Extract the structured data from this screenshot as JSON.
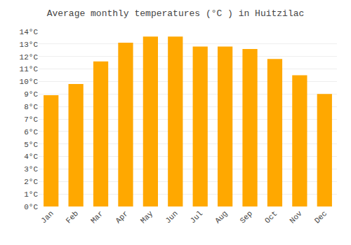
{
  "chart_data": {
    "type": "bar",
    "title": "Average monthly temperatures (°C ) in Huitzilac",
    "categories": [
      "Jan",
      "Feb",
      "Mar",
      "Apr",
      "May",
      "Jun",
      "Jul",
      "Aug",
      "Sep",
      "Oct",
      "Nov",
      "Dec"
    ],
    "values": [
      8.9,
      9.8,
      11.6,
      13.1,
      13.6,
      13.6,
      12.8,
      12.8,
      12.6,
      11.8,
      10.5,
      9.0
    ],
    "color": "#FFA800",
    "ylim": [
      0,
      14
    ],
    "yticks": [
      {
        "value": 0,
        "label": "0°C"
      },
      {
        "value": 1,
        "label": "1°C"
      },
      {
        "value": 2,
        "label": "2°C"
      },
      {
        "value": 3,
        "label": "3°C"
      },
      {
        "value": 4,
        "label": "4°C"
      },
      {
        "value": 5,
        "label": "5°C"
      },
      {
        "value": 6,
        "label": "6°C"
      },
      {
        "value": 7,
        "label": "7°C"
      },
      {
        "value": 8,
        "label": "8°C"
      },
      {
        "value": 9,
        "label": "9°C"
      },
      {
        "value": 10,
        "label": "10°C"
      },
      {
        "value": 11,
        "label": "11°C"
      },
      {
        "value": 12,
        "label": "12°C"
      },
      {
        "value": 13,
        "label": "13°C"
      },
      {
        "value": 14,
        "label": "14°C"
      }
    ],
    "grid": true
  }
}
